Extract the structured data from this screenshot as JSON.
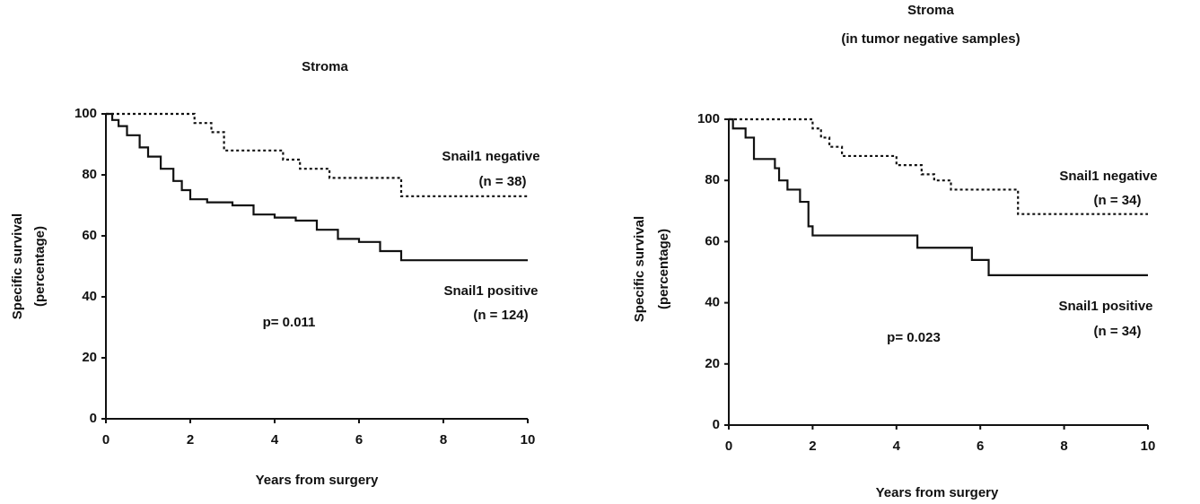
{
  "chart_data": [
    {
      "type": "step",
      "title": "Stroma",
      "xlabel": "Years from surgery",
      "ylabel": [
        "Specific survival",
        "(percentage)"
      ],
      "xlim": [
        0,
        10
      ],
      "xticks": [
        0,
        2,
        4,
        6,
        8,
        10
      ],
      "ylim": [
        0,
        100
      ],
      "yticks": [
        0,
        20,
        40,
        60,
        80,
        100
      ],
      "annotation": "p= 0.011",
      "series": [
        {
          "name": "Snail1 negative",
          "n_label": "(n = 38)",
          "color": "#111111",
          "dash": "dotted",
          "x": [
            0,
            2.1,
            2.5,
            2.8,
            4.2,
            4.6,
            5.3,
            7.0,
            10
          ],
          "values": [
            100,
            97,
            94,
            88,
            85,
            82,
            79,
            73,
            73
          ]
        },
        {
          "name": "Snail1 positive",
          "n_label": "(n = 124)",
          "color": "#111111",
          "dash": "solid",
          "x": [
            0,
            0.15,
            0.3,
            0.5,
            0.8,
            1.0,
            1.3,
            1.6,
            1.8,
            2.0,
            2.4,
            3.0,
            3.5,
            4.0,
            4.5,
            5.0,
            5.5,
            6.0,
            6.5,
            7.0,
            10
          ],
          "values": [
            100,
            98,
            96,
            93,
            89,
            86,
            82,
            78,
            75,
            72,
            71,
            70,
            67,
            66,
            65,
            62,
            59,
            58,
            55,
            52,
            52
          ]
        }
      ]
    },
    {
      "type": "step",
      "title": "Stroma",
      "subtitle": "(in tumor negative samples)",
      "xlabel": "Years from surgery",
      "ylabel": [
        "Specific survival",
        "(percentage)"
      ],
      "xlim": [
        0,
        10
      ],
      "xticks": [
        0,
        2,
        4,
        6,
        8,
        10
      ],
      "ylim": [
        0,
        100
      ],
      "yticks": [
        0,
        20,
        40,
        60,
        80,
        100
      ],
      "annotation": "p= 0.023",
      "series": [
        {
          "name": "Snail1 negative",
          "n_label": "(n = 34)",
          "color": "#111111",
          "dash": "dotted",
          "x": [
            0,
            2.0,
            2.2,
            2.4,
            2.7,
            4.0,
            4.6,
            4.9,
            5.3,
            6.9,
            10
          ],
          "values": [
            100,
            97,
            94,
            91,
            88,
            85,
            82,
            80,
            77,
            69,
            69
          ]
        },
        {
          "name": "Snail1 positive",
          "n_label": "(n = 34)",
          "color": "#111111",
          "dash": "solid",
          "x": [
            0,
            0.1,
            0.4,
            0.6,
            1.1,
            1.2,
            1.4,
            1.7,
            1.9,
            2.0,
            4.5,
            5.8,
            6.2,
            10
          ],
          "values": [
            100,
            97,
            94,
            87,
            84,
            80,
            77,
            73,
            65,
            62,
            58,
            54,
            49,
            49
          ]
        }
      ]
    }
  ]
}
